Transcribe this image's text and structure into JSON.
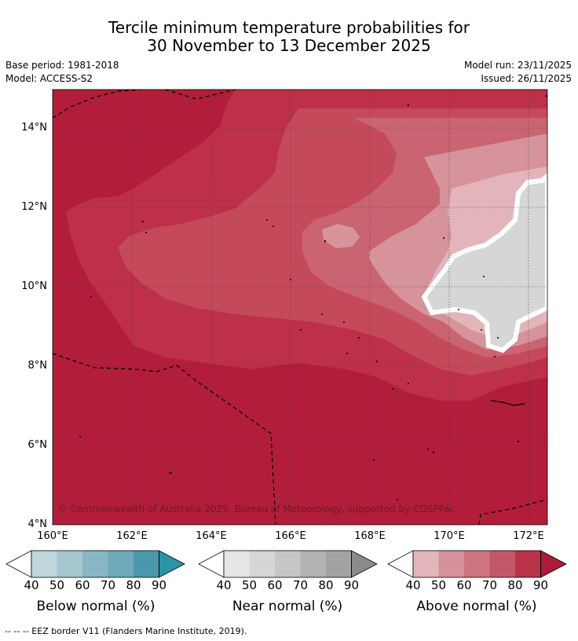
{
  "title": {
    "line1": "Tercile minimum temperature probabilities for",
    "line2": "30 November to 13 December 2025"
  },
  "meta": {
    "base_period": "Base period: 1981-2018",
    "model": "Model: ACCESS-S2",
    "model_run": "Model run: 23/11/2025",
    "issued": "Issued: 26/11/2025"
  },
  "map": {
    "latitude_labels": [
      "14°N",
      "12°N",
      "10°N",
      "8°N",
      "6°N",
      "4°N"
    ],
    "longitude_labels": [
      "160°E",
      "162°E",
      "164°E",
      "166°E",
      "168°E",
      "170°E",
      "172°E"
    ],
    "lat_range_deg": [
      4,
      15
    ],
    "lon_range_deg": [
      160,
      172.5
    ],
    "copyright": "© Commonwealth of Australia 2025, Bureau of Meteorology, supported by COSPPac"
  },
  "colorbars": [
    {
      "name": "below",
      "label": "Below normal (%)",
      "ticks": [
        "40",
        "50",
        "60",
        "70",
        "80",
        "90"
      ],
      "colors": [
        "#bfd6dd",
        "#a6c7cf",
        "#88b6c3",
        "#6eabba",
        "#4a98ad",
        "#2d93a8"
      ]
    },
    {
      "name": "near",
      "label": "Near normal (%)",
      "ticks": [
        "40",
        "50",
        "60",
        "70",
        "80",
        "90"
      ],
      "colors": [
        "#e6e6e6",
        "#d6d6d6",
        "#c6c6c6",
        "#b3b3b3",
        "#a3a3a3",
        "#8a8a8a"
      ]
    },
    {
      "name": "above",
      "label": "Above normal (%)",
      "ticks": [
        "40",
        "50",
        "60",
        "70",
        "80",
        "90"
      ],
      "colors": [
        "#e3b5bb",
        "#d6929b",
        "#cf757f",
        "#c25768",
        "#b83248",
        "#ad1b3a"
      ]
    }
  ],
  "footer": "--  --  -- EEZ border V11 (Flanders Marine Institute, 2019)."
}
